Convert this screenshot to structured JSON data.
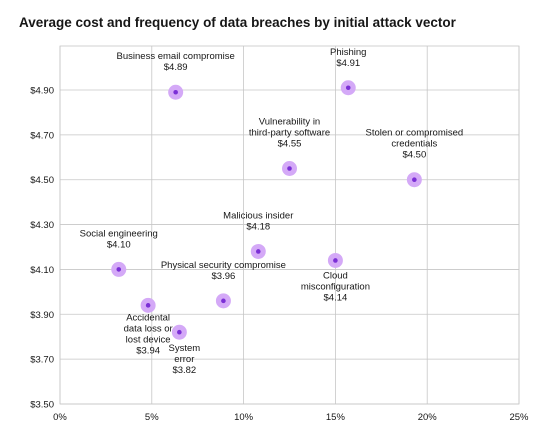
{
  "chart_data": {
    "type": "scatter",
    "title": "Average cost and frequency of data breaches by initial attack vector",
    "xlabel": "",
    "ylabel": "",
    "xlim": [
      0,
      25
    ],
    "ylim": [
      3.5,
      4.9
    ],
    "x_ticks": [
      "0%",
      "5%",
      "10%",
      "15%",
      "20%",
      "25%"
    ],
    "y_ticks": [
      "$3.50",
      "$3.70",
      "$3.90",
      "$4.10",
      "$4.30",
      "$4.50",
      "$4.70",
      "$4.90"
    ],
    "grid": true,
    "colors": {
      "point_halo": "#d4a9f7",
      "point_center": "#7b2fd6",
      "grid": "#c6c6c6",
      "text": "#161616"
    },
    "points": [
      {
        "label_lines": [
          "Business email compromise"
        ],
        "value_label": "$4.89",
        "x": 6.3,
        "y": 4.89
      },
      {
        "label_lines": [
          "Phishing"
        ],
        "value_label": "$4.91",
        "x": 15.7,
        "y": 4.91
      },
      {
        "label_lines": [
          "Vulnerability in",
          "third-party software"
        ],
        "value_label": "$4.55",
        "x": 12.5,
        "y": 4.55
      },
      {
        "label_lines": [
          "Stolen or compromised",
          "credentials"
        ],
        "value_label": "$4.50",
        "x": 19.3,
        "y": 4.5
      },
      {
        "label_lines": [
          "Malicious insider"
        ],
        "value_label": "$4.18",
        "x": 10.8,
        "y": 4.18
      },
      {
        "label_lines": [
          "Social engineering"
        ],
        "value_label": "$4.10",
        "x": 3.2,
        "y": 4.1
      },
      {
        "label_lines": [
          "Cloud",
          "misconfiguration"
        ],
        "value_label": "$4.14",
        "x": 15.0,
        "y": 4.14
      },
      {
        "label_lines": [
          "Physical security compromise"
        ],
        "value_label": "$3.96",
        "x": 8.9,
        "y": 3.96
      },
      {
        "label_lines": [
          "Accidental",
          "data loss or",
          "lost device"
        ],
        "value_label": "$3.94",
        "x": 4.8,
        "y": 3.94
      },
      {
        "label_lines": [
          "System",
          "error"
        ],
        "value_label": "$3.82",
        "x": 6.5,
        "y": 3.82
      }
    ]
  }
}
